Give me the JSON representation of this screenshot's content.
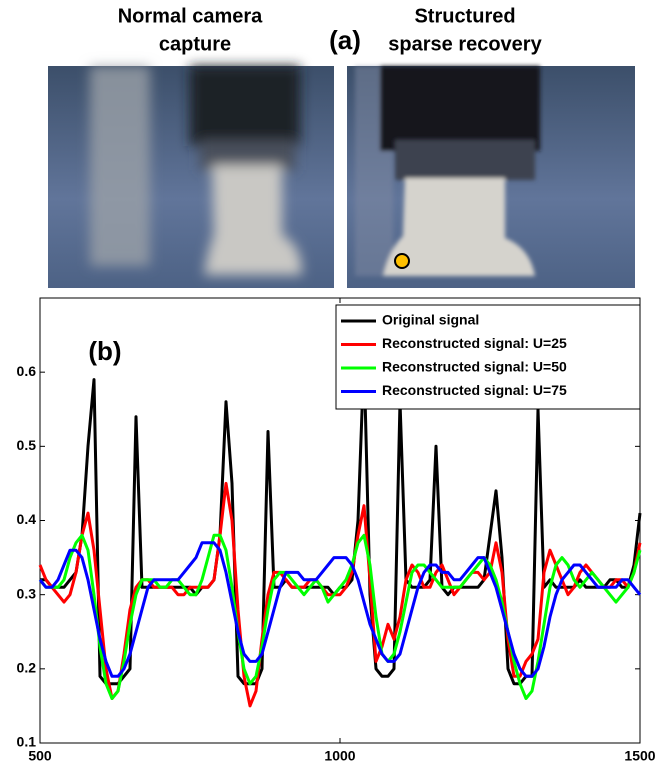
{
  "figure": {
    "panel_label": "(a)",
    "left_title": [
      "Normal camera",
      "capture"
    ],
    "right_title": [
      "Structured",
      "sparse recovery"
    ]
  },
  "chart_data": {
    "type": "line",
    "annotation": "(b)",
    "xlim": [
      500,
      1500
    ],
    "xticks": [
      500,
      1000,
      1500
    ],
    "ylim": [
      0.1,
      0.7
    ],
    "yticks": [
      0.1,
      0.2,
      0.3,
      0.4,
      0.5,
      0.6
    ],
    "legend": "upper right",
    "x": [
      500,
      510,
      520,
      530,
      540,
      550,
      560,
      570,
      580,
      590,
      600,
      610,
      620,
      630,
      640,
      650,
      660,
      670,
      680,
      690,
      700,
      710,
      720,
      730,
      740,
      750,
      760,
      770,
      780,
      790,
      800,
      810,
      820,
      830,
      840,
      850,
      860,
      870,
      880,
      890,
      900,
      910,
      920,
      930,
      940,
      950,
      960,
      970,
      980,
      990,
      1000,
      1010,
      1020,
      1030,
      1040,
      1050,
      1060,
      1070,
      1080,
      1090,
      1100,
      1110,
      1120,
      1130,
      1140,
      1150,
      1160,
      1170,
      1180,
      1190,
      1200,
      1210,
      1220,
      1230,
      1240,
      1250,
      1260,
      1270,
      1280,
      1290,
      1300,
      1310,
      1320,
      1330,
      1340,
      1350,
      1360,
      1370,
      1380,
      1390,
      1400,
      1410,
      1420,
      1430,
      1440,
      1450,
      1460,
      1470,
      1480,
      1490,
      1500
    ],
    "series": [
      {
        "name": "Original signal",
        "color": "#000000",
        "values": [
          0.32,
          0.32,
          0.31,
          0.31,
          0.31,
          0.32,
          0.33,
          0.38,
          0.5,
          0.59,
          0.19,
          0.18,
          0.18,
          0.18,
          0.19,
          0.2,
          0.54,
          0.31,
          0.31,
          0.31,
          0.31,
          0.31,
          0.31,
          0.31,
          0.31,
          0.31,
          0.3,
          0.31,
          0.31,
          0.32,
          0.38,
          0.56,
          0.45,
          0.19,
          0.18,
          0.18,
          0.18,
          0.2,
          0.52,
          0.31,
          0.31,
          0.32,
          0.31,
          0.31,
          0.31,
          0.31,
          0.31,
          0.31,
          0.31,
          0.3,
          0.31,
          0.31,
          0.32,
          0.4,
          0.62,
          0.3,
          0.2,
          0.19,
          0.19,
          0.2,
          0.56,
          0.32,
          0.31,
          0.31,
          0.31,
          0.32,
          0.5,
          0.31,
          0.3,
          0.31,
          0.31,
          0.31,
          0.31,
          0.31,
          0.32,
          0.38,
          0.44,
          0.35,
          0.2,
          0.18,
          0.18,
          0.19,
          0.19,
          0.55,
          0.31,
          0.32,
          0.31,
          0.31,
          0.31,
          0.31,
          0.32,
          0.31,
          0.31,
          0.31,
          0.31,
          0.32,
          0.32,
          0.31,
          0.31,
          0.34,
          0.41
        ]
      },
      {
        "name": "Reconstructed signal: U=25",
        "color": "#ff0000",
        "values": [
          0.34,
          0.32,
          0.31,
          0.3,
          0.29,
          0.3,
          0.33,
          0.38,
          0.41,
          0.36,
          0.28,
          0.2,
          0.16,
          0.17,
          0.22,
          0.28,
          0.31,
          0.32,
          0.32,
          0.31,
          0.31,
          0.31,
          0.31,
          0.3,
          0.3,
          0.31,
          0.31,
          0.31,
          0.31,
          0.32,
          0.38,
          0.45,
          0.4,
          0.28,
          0.19,
          0.15,
          0.17,
          0.24,
          0.3,
          0.33,
          0.33,
          0.32,
          0.31,
          0.31,
          0.31,
          0.32,
          0.32,
          0.31,
          0.3,
          0.3,
          0.3,
          0.31,
          0.33,
          0.38,
          0.42,
          0.32,
          0.21,
          0.23,
          0.26,
          0.24,
          0.27,
          0.32,
          0.34,
          0.33,
          0.31,
          0.31,
          0.33,
          0.34,
          0.32,
          0.3,
          0.31,
          0.32,
          0.33,
          0.33,
          0.32,
          0.33,
          0.37,
          0.33,
          0.24,
          0.19,
          0.19,
          0.21,
          0.22,
          0.24,
          0.33,
          0.36,
          0.34,
          0.32,
          0.3,
          0.31,
          0.33,
          0.34,
          0.33,
          0.32,
          0.31,
          0.31,
          0.32,
          0.32,
          0.31,
          0.33,
          0.37
        ]
      },
      {
        "name": "Reconstructed signal: U=50",
        "color": "#00ff00",
        "values": [
          0.32,
          0.31,
          0.31,
          0.31,
          0.32,
          0.35,
          0.37,
          0.38,
          0.36,
          0.3,
          0.23,
          0.18,
          0.16,
          0.17,
          0.21,
          0.26,
          0.3,
          0.32,
          0.32,
          0.32,
          0.31,
          0.31,
          0.32,
          0.32,
          0.31,
          0.3,
          0.3,
          0.32,
          0.35,
          0.38,
          0.38,
          0.36,
          0.31,
          0.25,
          0.2,
          0.18,
          0.19,
          0.23,
          0.28,
          0.32,
          0.33,
          0.33,
          0.32,
          0.31,
          0.3,
          0.31,
          0.32,
          0.31,
          0.29,
          0.3,
          0.31,
          0.32,
          0.34,
          0.37,
          0.38,
          0.34,
          0.27,
          0.22,
          0.21,
          0.22,
          0.25,
          0.29,
          0.33,
          0.34,
          0.34,
          0.33,
          0.32,
          0.31,
          0.31,
          0.31,
          0.31,
          0.32,
          0.33,
          0.34,
          0.35,
          0.34,
          0.32,
          0.29,
          0.25,
          0.21,
          0.18,
          0.16,
          0.17,
          0.21,
          0.26,
          0.31,
          0.34,
          0.35,
          0.34,
          0.32,
          0.31,
          0.32,
          0.33,
          0.32,
          0.31,
          0.3,
          0.29,
          0.3,
          0.31,
          0.33,
          0.36
        ]
      },
      {
        "name": "Reconstructed signal: U=75",
        "color": "#0000ff",
        "values": [
          0.32,
          0.31,
          0.31,
          0.32,
          0.34,
          0.36,
          0.36,
          0.35,
          0.32,
          0.28,
          0.24,
          0.21,
          0.19,
          0.19,
          0.2,
          0.22,
          0.25,
          0.28,
          0.31,
          0.32,
          0.32,
          0.32,
          0.32,
          0.32,
          0.33,
          0.34,
          0.35,
          0.37,
          0.37,
          0.37,
          0.36,
          0.33,
          0.29,
          0.25,
          0.22,
          0.21,
          0.21,
          0.22,
          0.25,
          0.28,
          0.31,
          0.33,
          0.33,
          0.33,
          0.32,
          0.32,
          0.32,
          0.33,
          0.34,
          0.35,
          0.35,
          0.35,
          0.34,
          0.32,
          0.29,
          0.26,
          0.24,
          0.22,
          0.21,
          0.21,
          0.22,
          0.25,
          0.28,
          0.31,
          0.33,
          0.34,
          0.34,
          0.33,
          0.33,
          0.32,
          0.32,
          0.33,
          0.34,
          0.35,
          0.35,
          0.33,
          0.31,
          0.28,
          0.25,
          0.22,
          0.2,
          0.19,
          0.19,
          0.2,
          0.23,
          0.27,
          0.3,
          0.32,
          0.33,
          0.34,
          0.34,
          0.33,
          0.32,
          0.31,
          0.31,
          0.31,
          0.31,
          0.32,
          0.32,
          0.31,
          0.3
        ]
      }
    ]
  }
}
